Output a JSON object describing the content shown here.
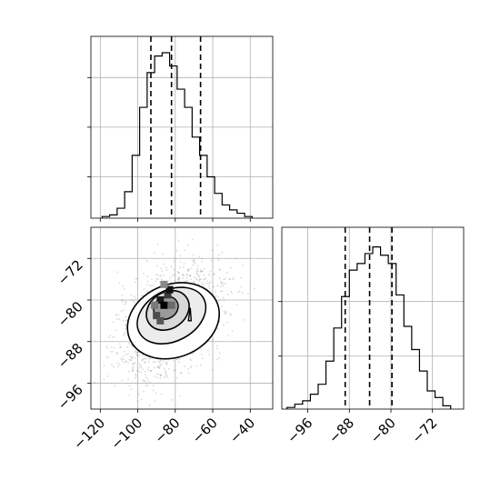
{
  "chart_data": [
    {
      "panel": "marginal-x",
      "type": "histogram",
      "xlim": [
        -125,
        -28
      ],
      "ylim": [
        0,
        1.0
      ],
      "bins": [
        {
          "x0": -119,
          "x1": -115,
          "count": 0.01
        },
        {
          "x0": -115,
          "x1": -111,
          "count": 0.02
        },
        {
          "x0": -111,
          "x1": -107,
          "count": 0.06
        },
        {
          "x0": -107,
          "x1": -103,
          "count": 0.16
        },
        {
          "x0": -103,
          "x1": -99,
          "count": 0.38
        },
        {
          "x0": -99,
          "x1": -95,
          "count": 0.67
        },
        {
          "x0": -95,
          "x1": -91,
          "count": 0.88
        },
        {
          "x0": -91,
          "x1": -87,
          "count": 0.98
        },
        {
          "x0": -87,
          "x1": -83,
          "count": 1.0
        },
        {
          "x0": -83,
          "x1": -79,
          "count": 0.92
        },
        {
          "x0": -79,
          "x1": -75,
          "count": 0.78
        },
        {
          "x0": -75,
          "x1": -71,
          "count": 0.67
        },
        {
          "x0": -71,
          "x1": -67,
          "count": 0.49
        },
        {
          "x0": -67,
          "x1": -63,
          "count": 0.38
        },
        {
          "x0": -63,
          "x1": -59,
          "count": 0.25
        },
        {
          "x0": -59,
          "x1": -55,
          "count": 0.15
        },
        {
          "x0": -55,
          "x1": -51,
          "count": 0.08
        },
        {
          "x0": -51,
          "x1": -47,
          "count": 0.05
        },
        {
          "x0": -47,
          "x1": -43,
          "count": 0.03
        },
        {
          "x0": -43,
          "x1": -39,
          "count": 0.01
        }
      ],
      "quantile_lines": [
        -93,
        -82,
        -66.5
      ],
      "grid": true
    },
    {
      "panel": "joint",
      "type": "contour-scatter",
      "xlim": [
        -125,
        -28
      ],
      "ylim": [
        -101,
        -66
      ],
      "x_ticks": [
        -120,
        -100,
        -80,
        -60,
        -40
      ],
      "y_ticks": [
        -72,
        -80,
        -88,
        -96
      ],
      "grid": true
    },
    {
      "panel": "marginal-y",
      "type": "histogram",
      "xlim": [
        -101,
        -66
      ],
      "ylim": [
        0,
        1.0
      ],
      "x_ticks": [
        -96,
        -88,
        -80,
        -72
      ],
      "bins": [
        {
          "x0": -100,
          "x1": -98.5,
          "count": 0.01
        },
        {
          "x0": -98.5,
          "x1": -97,
          "count": 0.03
        },
        {
          "x0": -97,
          "x1": -95.5,
          "count": 0.05
        },
        {
          "x0": -95.5,
          "x1": -94,
          "count": 0.09
        },
        {
          "x0": -94,
          "x1": -92.5,
          "count": 0.15
        },
        {
          "x0": -92.5,
          "x1": -91,
          "count": 0.29
        },
        {
          "x0": -91,
          "x1": -89.5,
          "count": 0.49
        },
        {
          "x0": -89.5,
          "x1": -88,
          "count": 0.68
        },
        {
          "x0": -88,
          "x1": -86.5,
          "count": 0.84
        },
        {
          "x0": -86.5,
          "x1": -85,
          "count": 0.88
        },
        {
          "x0": -85,
          "x1": -83.5,
          "count": 0.94
        },
        {
          "x0": -83.5,
          "x1": -82,
          "count": 0.98
        },
        {
          "x0": -82,
          "x1": -80.5,
          "count": 0.93
        },
        {
          "x0": -80.5,
          "x1": -79,
          "count": 0.88
        },
        {
          "x0": -79,
          "x1": -77.5,
          "count": 0.69
        },
        {
          "x0": -77.5,
          "x1": -76,
          "count": 0.5
        },
        {
          "x0": -76,
          "x1": -74.5,
          "count": 0.36
        },
        {
          "x0": -74.5,
          "x1": -73,
          "count": 0.23
        },
        {
          "x0": -73,
          "x1": -71.5,
          "count": 0.11
        },
        {
          "x0": -71.5,
          "x1": -70,
          "count": 0.07
        },
        {
          "x0": -70,
          "x1": -68.5,
          "count": 0.02
        }
      ],
      "quantile_lines": [
        -88.8,
        -84.1,
        -79.8
      ],
      "grid": true
    }
  ]
}
